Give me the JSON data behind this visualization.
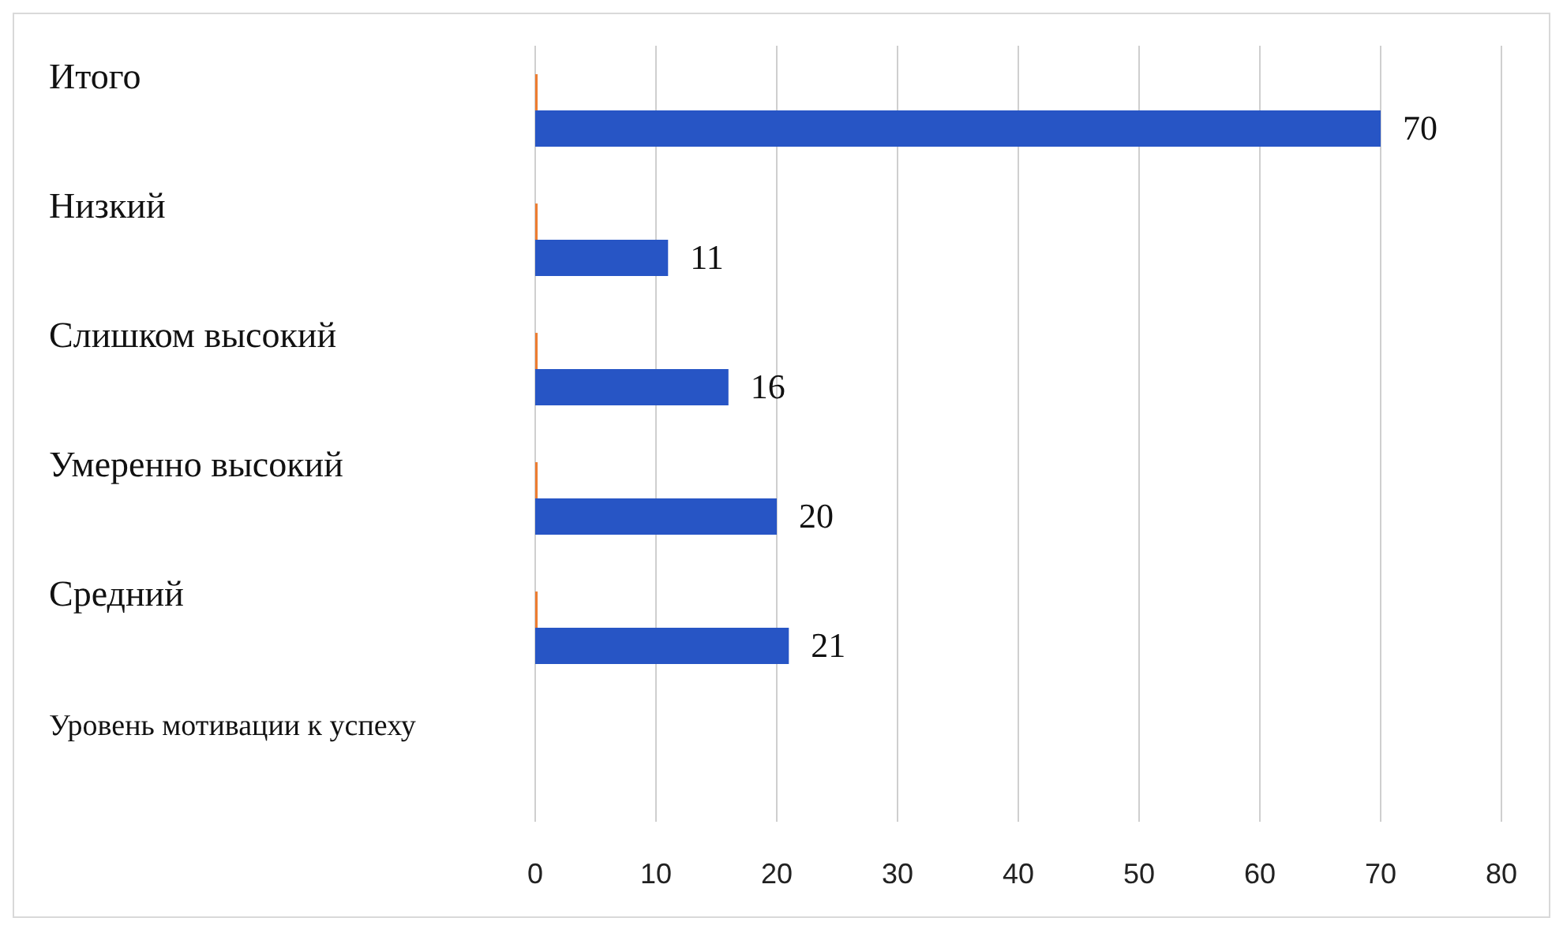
{
  "chart_data": {
    "type": "bar",
    "orientation": "horizontal",
    "categories": [
      "Итого",
      "Низкий",
      "Слишком высокий",
      "Умеренно высокий",
      "Средний",
      "Уровень мотивации к успеху"
    ],
    "series": [
      {
        "color": "#ed7d31",
        "values": [
          0.2,
          0.2,
          0.2,
          0.2,
          0.2,
          null
        ]
      },
      {
        "color": "#2755c5",
        "values": [
          70,
          11,
          16,
          20,
          21,
          null
        ],
        "value_labels": [
          "70",
          "11",
          "16",
          "20",
          "21",
          null
        ]
      }
    ],
    "xlim": [
      0,
      80
    ],
    "xticks": [
      0,
      10,
      20,
      30,
      40,
      50,
      60,
      70,
      80
    ],
    "grid": "x",
    "legend": false
  }
}
